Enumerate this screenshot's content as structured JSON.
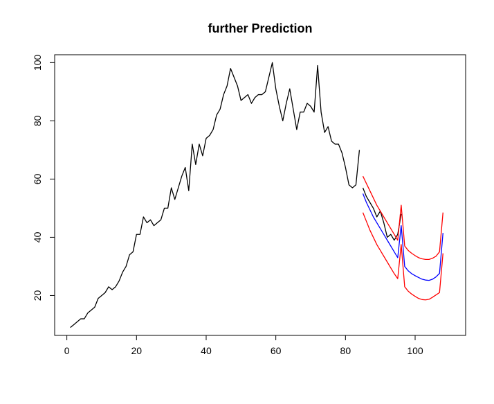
{
  "chart_data": {
    "type": "line",
    "title": "further Prediction",
    "xlabel": "",
    "ylabel": "",
    "xlim": [
      -3.5,
      114.5
    ],
    "ylim": [
      6.3,
      102.7
    ],
    "x_ticks": [
      0,
      20,
      40,
      60,
      80,
      100
    ],
    "y_ticks": [
      20,
      40,
      60,
      80,
      100
    ],
    "grid": false,
    "colors": {
      "series_black": "#000000",
      "series_blue": "#0000ff",
      "series_red": "#ff0000"
    },
    "series": [
      {
        "color": "#000000",
        "x": [
          1,
          2,
          3,
          4,
          5,
          6,
          7,
          8,
          9,
          10,
          11,
          12,
          13,
          14,
          15,
          16,
          17,
          18,
          19,
          20,
          21,
          22,
          23,
          24,
          25,
          26,
          27,
          28,
          29,
          30,
          31,
          32,
          33,
          34,
          35,
          36,
          37,
          38,
          39,
          40,
          41,
          42,
          43,
          44,
          45,
          46,
          47,
          48,
          49,
          50,
          51,
          52,
          53,
          54,
          55,
          56,
          57,
          58,
          59,
          60,
          61,
          62,
          63,
          64,
          65,
          66,
          67,
          68,
          69,
          70,
          71,
          72,
          73,
          74,
          75,
          76,
          77,
          78,
          79,
          80,
          81,
          82,
          83,
          84
        ],
        "y": [
          9,
          10,
          11,
          12,
          12,
          14,
          15,
          16,
          19,
          20,
          21,
          23,
          22,
          23,
          25,
          28,
          30,
          34,
          35,
          41,
          41,
          47,
          45,
          46,
          44,
          45,
          46,
          50,
          50,
          57,
          53,
          57,
          61,
          64,
          56,
          72,
          65,
          72,
          68,
          74,
          75,
          77,
          82,
          84,
          89,
          92,
          98,
          95,
          92,
          87,
          88,
          89,
          86,
          88,
          89,
          89,
          90,
          95,
          100,
          91,
          85,
          80,
          86,
          91,
          84,
          77,
          83,
          83,
          86,
          85,
          83,
          99,
          83,
          76,
          78,
          73,
          72,
          72,
          69,
          64,
          58,
          57,
          58,
          70
        ]
      },
      {
        "color": "#000000",
        "x": [
          85,
          86,
          87,
          88,
          89,
          90,
          91,
          92,
          93,
          94,
          95,
          96
        ],
        "y": [
          57,
          54,
          52,
          50,
          47,
          49,
          45,
          40,
          41,
          39,
          41,
          48
        ]
      },
      {
        "color": "#0000ff",
        "x": [
          85,
          86,
          87,
          88,
          89,
          90,
          91,
          92,
          93,
          94,
          95,
          96,
          97,
          98,
          99,
          100,
          101,
          102,
          103,
          104,
          105,
          106,
          107,
          108
        ],
        "y": [
          55,
          52,
          49.5,
          47,
          45,
          43,
          41,
          39,
          37,
          35,
          33,
          44,
          30,
          28.5,
          27.5,
          26.8,
          26.2,
          25.6,
          25.3,
          25.2,
          25.6,
          26.4,
          27.6,
          41.5
        ]
      },
      {
        "color": "#ff0000",
        "x": [
          85,
          86,
          87,
          88,
          89,
          90,
          91,
          92,
          93,
          94,
          95,
          96,
          97,
          98,
          99,
          100,
          101,
          102,
          103,
          104,
          105,
          106,
          107,
          108
        ],
        "y": [
          61,
          58.5,
          56,
          53.5,
          51,
          49,
          47,
          45,
          43,
          41,
          39,
          51,
          37,
          35.5,
          34.5,
          33.7,
          33,
          32.6,
          32.4,
          32.4,
          32.8,
          33.5,
          35,
          48.5
        ]
      },
      {
        "color": "#ff0000",
        "x": [
          85,
          86,
          87,
          88,
          89,
          90,
          91,
          92,
          93,
          94,
          95,
          96,
          97,
          98,
          99,
          100,
          101,
          102,
          103,
          104,
          105,
          106,
          107,
          108
        ],
        "y": [
          48.5,
          45.5,
          42.5,
          40,
          37.5,
          35.5,
          33.5,
          31.5,
          29.5,
          27.5,
          25.8,
          37.5,
          23,
          21.5,
          20.5,
          19.7,
          19,
          18.6,
          18.5,
          18.7,
          19.4,
          20.2,
          21,
          34.5
        ]
      }
    ]
  }
}
